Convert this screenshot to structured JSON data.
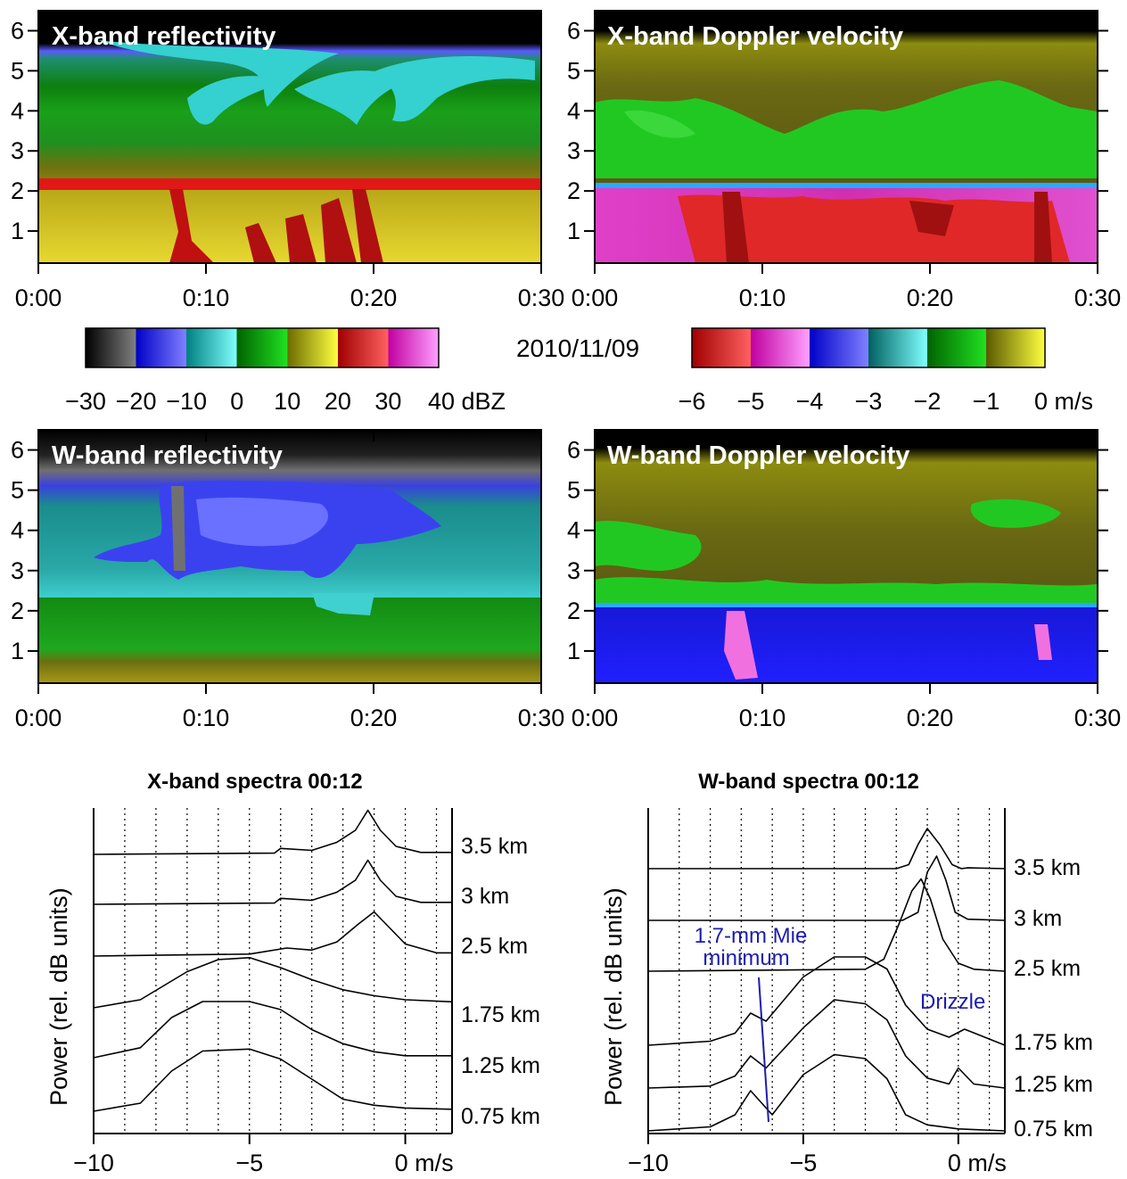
{
  "date_label": "2010/11/09",
  "colors": {
    "refl_cmap": [
      "#6a6a6a",
      "#2828ff",
      "#2fcfcf",
      "#12a012",
      "#c0b020",
      "#e01010",
      "#ff40e0"
    ],
    "vel_cmap": [
      "#e01010",
      "#ff40e0",
      "#2828ff",
      "#2fcfcf",
      "#12a012",
      "#c0b020"
    ],
    "trace": "#000000",
    "annotation": "#1c1cb0"
  },
  "colorbars": {
    "reflectivity": {
      "ticks": [
        "−30",
        "−20",
        "−10",
        "0",
        "10",
        "20",
        "30",
        "40 dBZ"
      ],
      "stops": [
        "#000000",
        "#808080",
        "#0000c8",
        "#8080ff",
        "#008080",
        "#80ffff",
        "#006400",
        "#20e020",
        "#6b6b00",
        "#ffff40",
        "#a00000",
        "#ff6060",
        "#c000a0",
        "#ffa0ff"
      ]
    },
    "velocity": {
      "ticks": [
        "−6",
        "−5",
        "−4",
        "−3",
        "−2",
        "−1",
        "0 m/s"
      ],
      "stops": [
        "#a00000",
        "#ff6060",
        "#c000a0",
        "#ffa0ff",
        "#0000c8",
        "#8080ff",
        "#006060",
        "#80ffff",
        "#006400",
        "#20e020",
        "#5a5a00",
        "#ffff40"
      ]
    }
  },
  "chart_data": [
    {
      "type": "heatmap",
      "title": "X-band reflectivity",
      "xlabel": "",
      "ylabel": "",
      "x_ticks": [
        "0:00",
        "0:10",
        "0:20",
        "0:30"
      ],
      "y_ticks": [
        "1",
        "2",
        "3",
        "4",
        "5",
        "6"
      ],
      "xlim": [
        0,
        30
      ],
      "ylim": [
        0.2,
        6.5
      ],
      "units": "dBZ",
      "layers": [
        {
          "z_top": 6.5,
          "value": -30
        },
        {
          "z_top": 5.5,
          "value": 5
        },
        {
          "z_top": 4.5,
          "value": -2
        },
        {
          "z_top": 3.5,
          "value": 12
        },
        {
          "z_top": 2.2,
          "value": 28
        },
        {
          "z_top": 2.05,
          "value": 18
        }
      ]
    },
    {
      "type": "heatmap",
      "title": "X-band Doppler velocity",
      "xlabel": "",
      "ylabel": "",
      "x_ticks": [
        "0:00",
        "0:10",
        "0:20",
        "0:30"
      ],
      "y_ticks": [
        "1",
        "2",
        "3",
        "4",
        "5",
        "6"
      ],
      "xlim": [
        0,
        30
      ],
      "ylim": [
        0.2,
        6.5
      ],
      "units": "m/s",
      "layers": [
        {
          "z_top": 6.5,
          "value": null
        },
        {
          "z_top": 5.8,
          "value": -0.5
        },
        {
          "z_top": 4.6,
          "value": -1.5
        },
        {
          "z_top": 2.2,
          "value": -3.8
        },
        {
          "z_top": 2.1,
          "value": -5.2
        }
      ]
    },
    {
      "type": "heatmap",
      "title": "W-band reflectivity",
      "xlabel": "",
      "ylabel": "",
      "x_ticks": [
        "0:00",
        "0:10",
        "0:20",
        "0:30"
      ],
      "y_ticks": [
        "1",
        "2",
        "3",
        "4",
        "5",
        "6"
      ],
      "xlim": [
        0,
        30
      ],
      "ylim": [
        0.2,
        6.5
      ],
      "units": "dBZ",
      "layers": [
        {
          "z_top": 6.5,
          "value": -30
        },
        {
          "z_top": 5.3,
          "value": -12
        },
        {
          "z_top": 2.3,
          "value": 4
        },
        {
          "z_top": 1.0,
          "value": 12
        }
      ]
    },
    {
      "type": "heatmap",
      "title": "W-band Doppler velocity",
      "xlabel": "",
      "ylabel": "",
      "x_ticks": [
        "0:00",
        "0:10",
        "0:20",
        "0:30"
      ],
      "y_ticks": [
        "1",
        "2",
        "3",
        "4",
        "5",
        "6"
      ],
      "xlim": [
        0,
        30
      ],
      "ylim": [
        0.2,
        6.5
      ],
      "units": "m/s",
      "layers": [
        {
          "z_top": 6.5,
          "value": null
        },
        {
          "z_top": 5.8,
          "value": -0.5
        },
        {
          "z_top": 4.5,
          "value": -1.5
        },
        {
          "z_top": 2.25,
          "value": -3.8
        },
        {
          "z_top": 2.2,
          "value": -3.6
        }
      ]
    },
    {
      "type": "line",
      "title": "X-band spectra 00:12",
      "xlabel": "",
      "ylabel": "Power (rel. dB units)",
      "x_ticks": [
        "−10",
        "−5",
        "0 m/s"
      ],
      "xlim": [
        -10,
        1.5
      ],
      "vgrid": [
        -9,
        -8,
        -7,
        -6,
        -5,
        -4,
        -3,
        -2,
        -1,
        0,
        1
      ],
      "series": [
        {
          "name": "3.5 km",
          "x": [
            -10,
            -4.2,
            -4.0,
            -3.0,
            -2.2,
            -1.6,
            -1.2,
            -0.8,
            -0.3,
            0.5,
            1.5
          ],
          "y": [
            0,
            0.3,
            1.5,
            1.0,
            3.0,
            6.0,
            11.0,
            6.0,
            2.0,
            0.5,
            0.5
          ]
        },
        {
          "name": "3 km",
          "x": [
            -10,
            -4.2,
            -4.0,
            -3.0,
            -2.2,
            -1.6,
            -1.2,
            -0.8,
            -0.3,
            0.5,
            1.5
          ],
          "y": [
            0,
            0.3,
            1.5,
            1.0,
            3.0,
            6.0,
            11.0,
            6.0,
            2.0,
            0.5,
            0.5
          ]
        },
        {
          "name": "2.5 km",
          "x": [
            -10,
            -5.0,
            -3.8,
            -3.0,
            -2.2,
            -1.5,
            -1.0,
            -0.5,
            0,
            1.0,
            1.5
          ],
          "y": [
            0,
            0.5,
            2.0,
            1.5,
            3.5,
            8.0,
            11.0,
            7.0,
            3.0,
            0.8,
            0.8
          ]
        },
        {
          "name": "1.75 km",
          "x": [
            -10,
            -8.5,
            -7.0,
            -6.0,
            -5.0,
            -4.0,
            -3.0,
            -2.0,
            -1.0,
            0,
            1.5
          ],
          "y": [
            0,
            2.0,
            9.0,
            12.0,
            12.5,
            10.0,
            7.0,
            4.5,
            3.0,
            2.0,
            1.5
          ]
        },
        {
          "name": "1.25 km",
          "x": [
            -10,
            -8.5,
            -7.5,
            -6.5,
            -5.0,
            -4.0,
            -3.0,
            -2.0,
            -1.0,
            0,
            1.5
          ],
          "y": [
            0,
            2.5,
            10.0,
            14.0,
            14.0,
            12.0,
            7.0,
            3.5,
            1.5,
            0.5,
            0.5
          ]
        },
        {
          "name": "0.75 km",
          "x": [
            -10,
            -8.5,
            -7.5,
            -6.5,
            -5.0,
            -4.0,
            -3.0,
            -2.0,
            -1.0,
            0,
            1.5
          ],
          "y": [
            0,
            2.0,
            10.0,
            15.0,
            15.5,
            13.0,
            8.0,
            3.0,
            1.5,
            0.8,
            0.5
          ]
        }
      ]
    },
    {
      "type": "line",
      "title": "W-band spectra 00:12",
      "xlabel": "",
      "ylabel": "Power (rel. dB units)",
      "x_ticks": [
        "−10",
        "−5",
        "0 m/s"
      ],
      "xlim": [
        -10,
        1.5
      ],
      "vgrid": [
        -9,
        -8,
        -7,
        -6,
        -5,
        -4,
        -3,
        -2,
        -1,
        0,
        1
      ],
      "series": [
        {
          "name": "3.5 km",
          "x": [
            -10,
            -2.0,
            -1.6,
            -1.3,
            -1.0,
            -0.6,
            -0.2,
            0.1,
            0.3,
            1.5
          ],
          "y": [
            0,
            0,
            1.0,
            6.0,
            10.0,
            6.0,
            1.0,
            0,
            0.2,
            0
          ]
        },
        {
          "name": "3 km",
          "x": [
            -10,
            -1.8,
            -1.3,
            -1.0,
            -0.7,
            -0.4,
            -0.1,
            0.3,
            1.5
          ],
          "y": [
            0,
            0,
            2.0,
            12.0,
            16.0,
            10.0,
            2.0,
            0.3,
            0
          ]
        },
        {
          "name": "2.5 km",
          "x": [
            -10,
            -3.0,
            -2.4,
            -1.9,
            -1.5,
            -1.2,
            -0.9,
            -0.5,
            0,
            0.5,
            1.5
          ],
          "y": [
            0,
            0.5,
            3.0,
            12.0,
            20.0,
            23.0,
            18.0,
            8.0,
            2.0,
            0.5,
            0
          ]
        },
        {
          "name": "1.75 km",
          "x": [
            -10,
            -8.0,
            -7.2,
            -6.7,
            -6.2,
            -5.0,
            -4.0,
            -3.0,
            -2.3,
            -1.7,
            -1.0,
            -0.3,
            0.2,
            1.5
          ],
          "y": [
            0,
            1.0,
            3.0,
            8.0,
            6.0,
            17.0,
            22.0,
            22.0,
            19.0,
            10.0,
            4.0,
            2.0,
            4.0,
            0
          ]
        },
        {
          "name": "1.25 km",
          "x": [
            -10,
            -8.0,
            -7.2,
            -6.7,
            -6.2,
            -5.0,
            -4.0,
            -3.0,
            -2.3,
            -1.7,
            -1.0,
            -0.3,
            0,
            0.5,
            1.5
          ],
          "y": [
            0,
            0.5,
            3.0,
            8.0,
            5.0,
            15.0,
            22.0,
            21.0,
            17.0,
            8.0,
            2.5,
            1.0,
            5.0,
            1.0,
            0
          ]
        },
        {
          "name": "0.75 km",
          "x": [
            -10,
            -8.0,
            -7.2,
            -6.7,
            -6.0,
            -5.0,
            -4.0,
            -3.0,
            -2.3,
            -1.7,
            -1.0,
            0,
            1.5
          ],
          "y": [
            0,
            1.0,
            4.0,
            10.0,
            4.0,
            14.0,
            19.0,
            18.0,
            13.0,
            4.0,
            1.5,
            0.5,
            0
          ]
        }
      ],
      "annotations": [
        "1.7-mm Mie",
        "minimum",
        "Drizzle"
      ]
    }
  ]
}
